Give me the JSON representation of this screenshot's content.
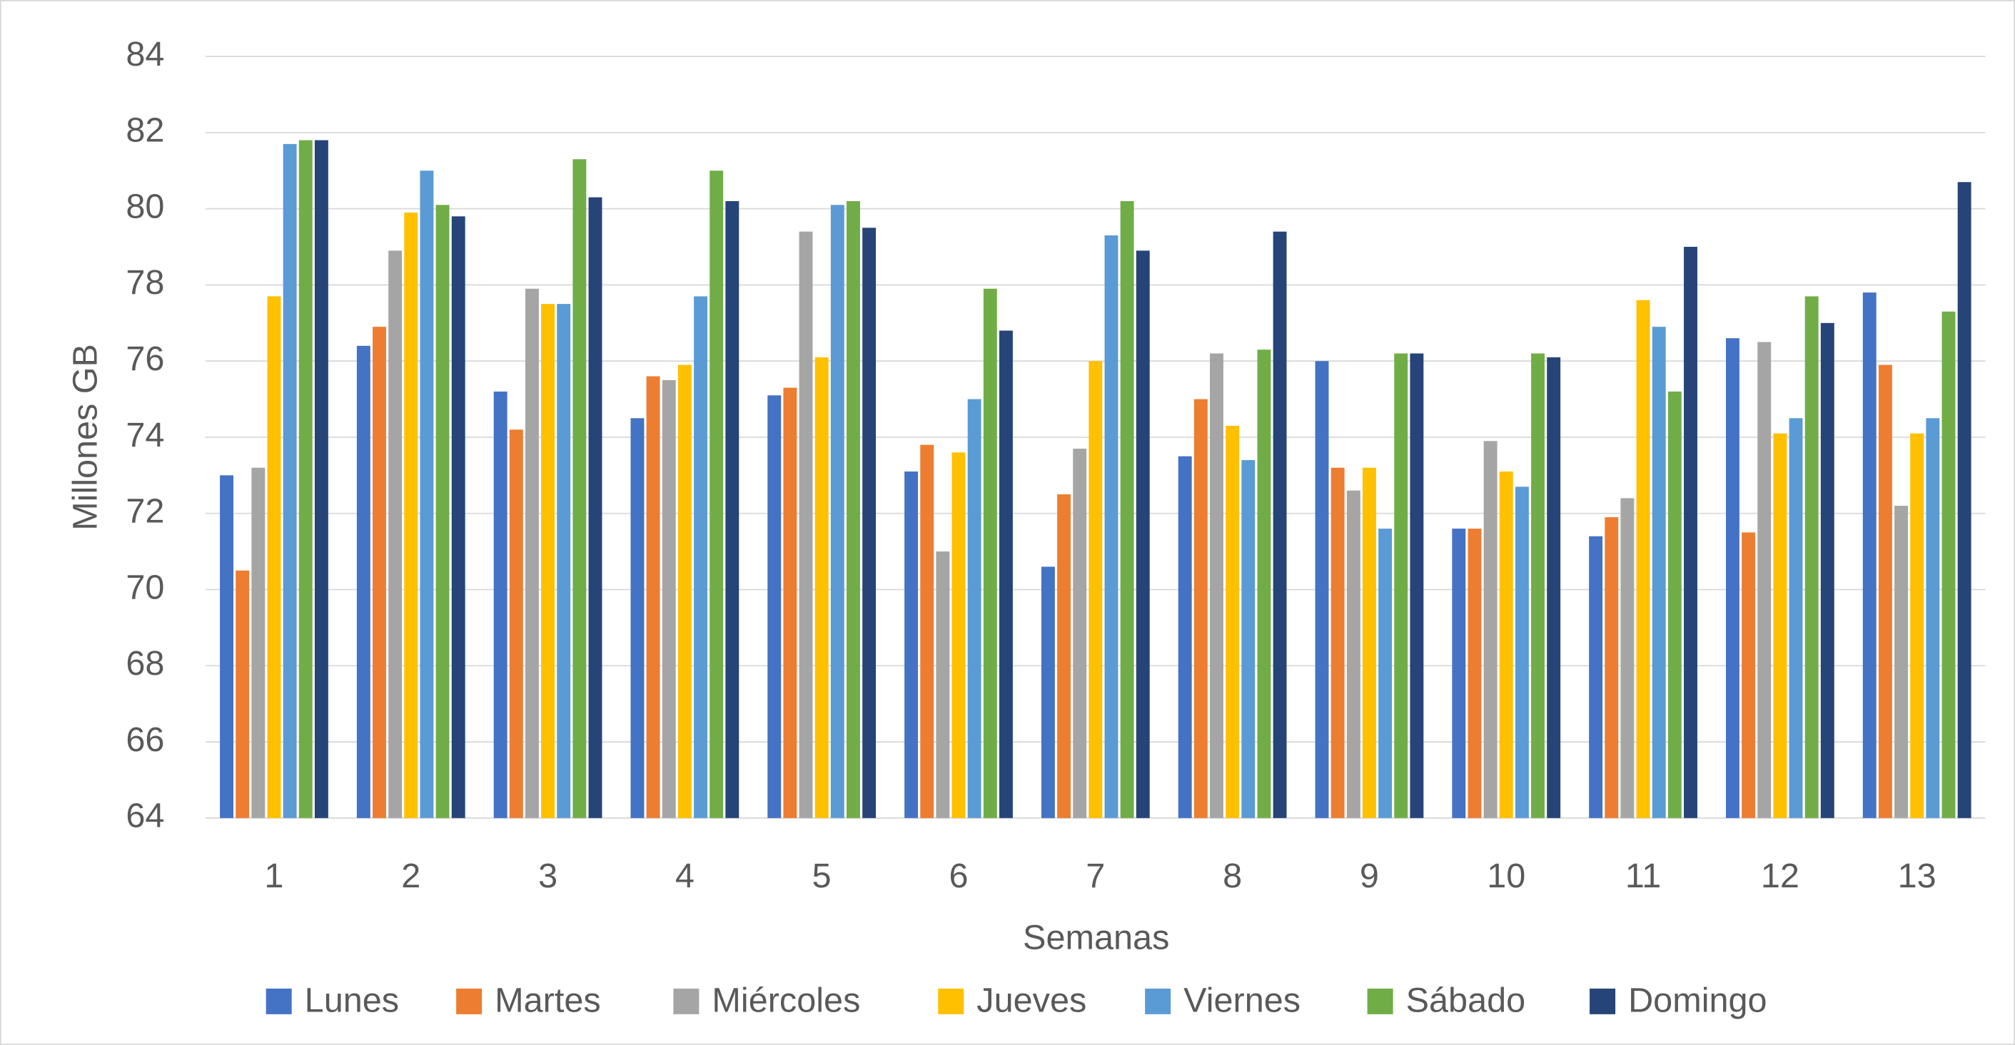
{
  "chart_data": {
    "type": "bar",
    "x_label": "Semanas",
    "y_label": "Millones GB",
    "categories": [
      "1",
      "2",
      "3",
      "4",
      "5",
      "6",
      "7",
      "8",
      "9",
      "10",
      "11",
      "12",
      "13"
    ],
    "series": [
      {
        "name": "Lunes",
        "color": "#4472c4",
        "values": [
          73.0,
          76.4,
          75.2,
          74.5,
          75.1,
          73.1,
          70.6,
          73.5,
          76.0,
          71.6,
          71.4,
          76.6,
          77.8
        ]
      },
      {
        "name": "Martes",
        "color": "#ed7d31",
        "values": [
          70.5,
          76.9,
          74.2,
          75.6,
          75.3,
          73.8,
          72.5,
          75.0,
          73.2,
          71.6,
          71.9,
          71.5,
          75.9
        ]
      },
      {
        "name": "Miércoles",
        "color": "#a5a5a5",
        "values": [
          73.2,
          78.9,
          77.9,
          75.5,
          79.4,
          71.0,
          73.7,
          76.2,
          72.6,
          73.9,
          72.4,
          76.5,
          72.2
        ]
      },
      {
        "name": "Jueves",
        "color": "#ffc000",
        "values": [
          77.7,
          79.9,
          77.5,
          75.9,
          76.1,
          73.6,
          76.0,
          74.3,
          73.2,
          73.1,
          77.6,
          74.1,
          74.1
        ]
      },
      {
        "name": "Viernes",
        "color": "#5b9bd5",
        "values": [
          81.7,
          81.0,
          77.5,
          77.7,
          80.1,
          75.0,
          79.3,
          73.4,
          71.6,
          72.7,
          76.9,
          74.5,
          74.5
        ]
      },
      {
        "name": "Sábado",
        "color": "#70ad47",
        "values": [
          81.8,
          80.1,
          81.3,
          81.0,
          80.2,
          77.9,
          80.2,
          76.3,
          76.2,
          76.2,
          75.2,
          77.7,
          77.3
        ]
      },
      {
        "name": "Domingo",
        "color": "#264478",
        "values": [
          81.8,
          79.8,
          80.3,
          80.2,
          79.5,
          76.8,
          78.9,
          79.4,
          76.2,
          76.1,
          79.0,
          77.0,
          80.7
        ]
      }
    ],
    "ylim": [
      64,
      84
    ],
    "yticks": [
      64,
      66,
      68,
      70,
      72,
      74,
      76,
      78,
      80,
      82,
      84
    ],
    "grid": true,
    "legend": "bottom"
  }
}
